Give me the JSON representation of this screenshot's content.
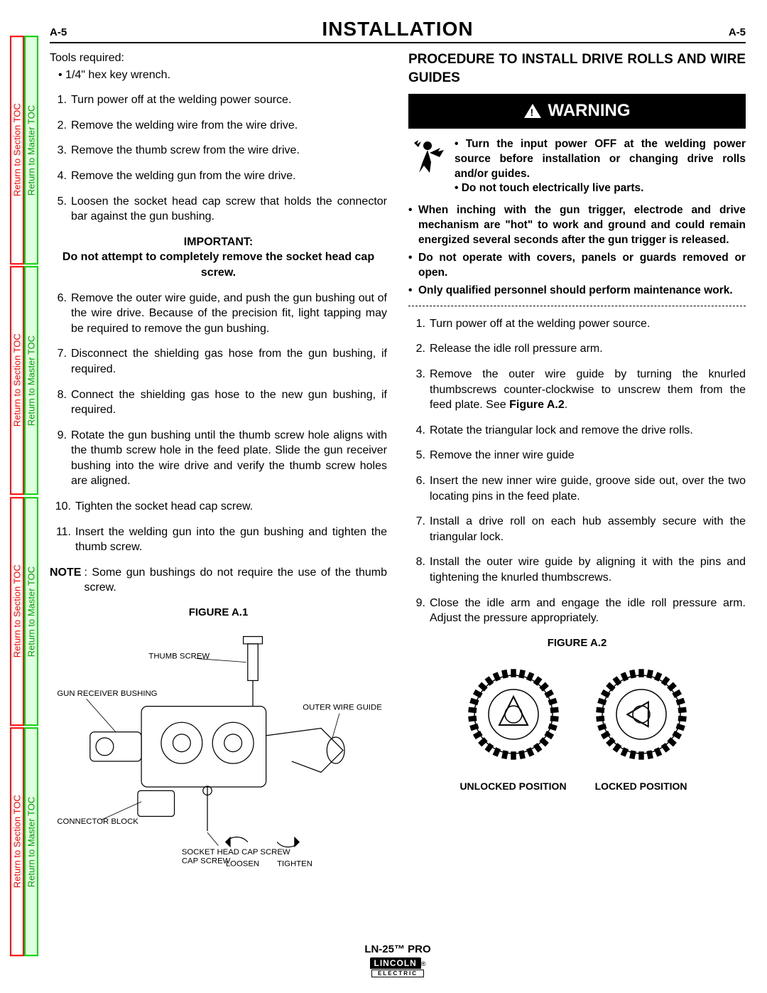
{
  "sideTabs": {
    "section": "Return to Section TOC",
    "master": "Return to Master TOC"
  },
  "header": {
    "left": "A-5",
    "title": "INSTALLATION",
    "right": "A-5"
  },
  "leftCol": {
    "toolsReq": "Tools required:",
    "toolsItem": "• 1/4\"  hex key wrench.",
    "steps1": [
      "Turn power off at the welding power source.",
      "Remove the welding wire from the wire drive.",
      "Remove the thumb screw from the wire drive.",
      "Remove the welding gun from the wire drive.",
      "Loosen the socket head cap screw that holds the connector bar against the gun bushing."
    ],
    "importantLabel": "IMPORTANT:",
    "importantText": "Do not attempt to completely remove the socket head cap screw.",
    "steps2": [
      "Remove the outer wire guide, and push the gun bushing out of the wire drive.  Because of the precision fit, light tapping may be required to remove the gun bushing.",
      "Disconnect the shielding gas hose from the gun bushing, if required.",
      "Connect the shielding gas hose to the new gun bushing, if required.",
      "Rotate the gun bushing until the thumb screw hole aligns with the thumb screw hole in the feed plate. Slide the gun receiver bushing into the wire drive and verify the thumb screw holes are aligned.",
      "Tighten the socket head cap screw.",
      "Insert the welding gun into the gun bushing and tighten the thumb screw."
    ],
    "noteLabel": "NOTE",
    "noteText": ": Some gun bushings do not require the use of the thumb screw.",
    "figureA1": {
      "title": "FIGURE A.1",
      "labels": {
        "thumbScrew": "THUMB SCREW",
        "gunReceiver": "GUN RECEIVER BUSHING",
        "outerWire": "OUTER WIRE GUIDE",
        "connector": "CONNECTOR BLOCK",
        "socketHead": "SOCKET HEAD CAP SCREW",
        "loosen": "LOOSEN",
        "tighten": "TIGHTEN"
      }
    }
  },
  "rightCol": {
    "subheading": "PROCEDURE TO INSTALL DRIVE ROLLS AND WIRE GUIDES",
    "warningWord": "WARNING",
    "warnTop1": "• Turn the input power OFF at the welding power source before installation or changing drive rolls and/or guides.",
    "warnTop2": "• Do not touch electrically live parts.",
    "warnBullets": [
      "When inching with the gun trigger, electrode and drive mechanism are \"hot\" to work and ground and could remain energized several seconds after the gun trigger is released.",
      "Do not operate with covers, panels or guards removed or open.",
      "Only qualified personnel should perform maintenance work."
    ],
    "steps": [
      "Turn power off at the welding power source.",
      "Release the idle roll pressure arm.",
      "Remove the outer wire guide by turning the knurled thumbscrews counter-clockwise to unscrew them from the feed plate.  See Figure A.2.",
      "Rotate the triangular lock and remove the drive rolls.",
      "Remove the inner wire guide",
      "Insert the new inner wire guide, groove side out, over the two locating pins in the feed plate.",
      "Install a drive roll on each hub assembly secure with the triangular lock.",
      "Install the outer wire guide by aligning it with the pins and tightening the knurled thumbscrews.",
      "Close the idle arm and engage the idle roll pressure arm.  Adjust the pressure appropriately."
    ],
    "figureA2": {
      "title": "FIGURE A.2",
      "unlocked": "UNLOCKED POSITION",
      "locked": "LOCKED POSITION"
    }
  },
  "footer": {
    "model": "LN-25™ PRO",
    "brand": "LINCOLN",
    "subbrand": "ELECTRIC"
  }
}
